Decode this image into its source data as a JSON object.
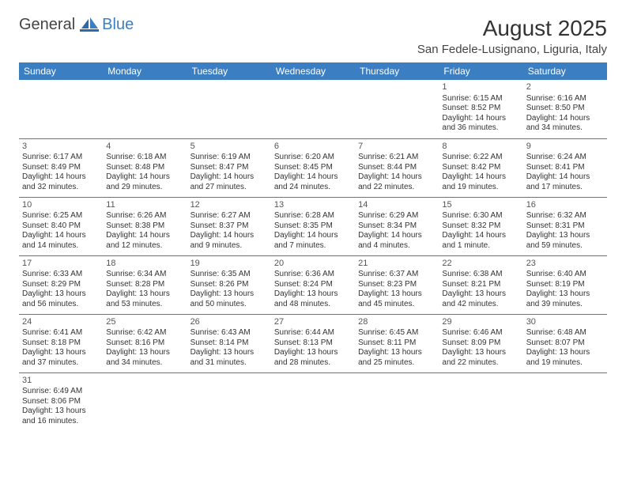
{
  "logo": {
    "general": "General",
    "blue": "Blue"
  },
  "title": "August 2025",
  "location": "San Fedele-Lusignano, Liguria, Italy",
  "colors": {
    "header_bg": "#3b7fc2",
    "header_text": "#ffffff",
    "border": "#3b7fc2",
    "text": "#333333",
    "logo_blue": "#3b7fc2",
    "logo_gray": "#444444",
    "background": "#ffffff"
  },
  "day_headers": [
    "Sunday",
    "Monday",
    "Tuesday",
    "Wednesday",
    "Thursday",
    "Friday",
    "Saturday"
  ],
  "weeks": [
    [
      null,
      null,
      null,
      null,
      null,
      {
        "n": "1",
        "sunrise": "Sunrise: 6:15 AM",
        "sunset": "Sunset: 8:52 PM",
        "daylight": "Daylight: 14 hours and 36 minutes."
      },
      {
        "n": "2",
        "sunrise": "Sunrise: 6:16 AM",
        "sunset": "Sunset: 8:50 PM",
        "daylight": "Daylight: 14 hours and 34 minutes."
      }
    ],
    [
      {
        "n": "3",
        "sunrise": "Sunrise: 6:17 AM",
        "sunset": "Sunset: 8:49 PM",
        "daylight": "Daylight: 14 hours and 32 minutes."
      },
      {
        "n": "4",
        "sunrise": "Sunrise: 6:18 AM",
        "sunset": "Sunset: 8:48 PM",
        "daylight": "Daylight: 14 hours and 29 minutes."
      },
      {
        "n": "5",
        "sunrise": "Sunrise: 6:19 AM",
        "sunset": "Sunset: 8:47 PM",
        "daylight": "Daylight: 14 hours and 27 minutes."
      },
      {
        "n": "6",
        "sunrise": "Sunrise: 6:20 AM",
        "sunset": "Sunset: 8:45 PM",
        "daylight": "Daylight: 14 hours and 24 minutes."
      },
      {
        "n": "7",
        "sunrise": "Sunrise: 6:21 AM",
        "sunset": "Sunset: 8:44 PM",
        "daylight": "Daylight: 14 hours and 22 minutes."
      },
      {
        "n": "8",
        "sunrise": "Sunrise: 6:22 AM",
        "sunset": "Sunset: 8:42 PM",
        "daylight": "Daylight: 14 hours and 19 minutes."
      },
      {
        "n": "9",
        "sunrise": "Sunrise: 6:24 AM",
        "sunset": "Sunset: 8:41 PM",
        "daylight": "Daylight: 14 hours and 17 minutes."
      }
    ],
    [
      {
        "n": "10",
        "sunrise": "Sunrise: 6:25 AM",
        "sunset": "Sunset: 8:40 PM",
        "daylight": "Daylight: 14 hours and 14 minutes."
      },
      {
        "n": "11",
        "sunrise": "Sunrise: 6:26 AM",
        "sunset": "Sunset: 8:38 PM",
        "daylight": "Daylight: 14 hours and 12 minutes."
      },
      {
        "n": "12",
        "sunrise": "Sunrise: 6:27 AM",
        "sunset": "Sunset: 8:37 PM",
        "daylight": "Daylight: 14 hours and 9 minutes."
      },
      {
        "n": "13",
        "sunrise": "Sunrise: 6:28 AM",
        "sunset": "Sunset: 8:35 PM",
        "daylight": "Daylight: 14 hours and 7 minutes."
      },
      {
        "n": "14",
        "sunrise": "Sunrise: 6:29 AM",
        "sunset": "Sunset: 8:34 PM",
        "daylight": "Daylight: 14 hours and 4 minutes."
      },
      {
        "n": "15",
        "sunrise": "Sunrise: 6:30 AM",
        "sunset": "Sunset: 8:32 PM",
        "daylight": "Daylight: 14 hours and 1 minute."
      },
      {
        "n": "16",
        "sunrise": "Sunrise: 6:32 AM",
        "sunset": "Sunset: 8:31 PM",
        "daylight": "Daylight: 13 hours and 59 minutes."
      }
    ],
    [
      {
        "n": "17",
        "sunrise": "Sunrise: 6:33 AM",
        "sunset": "Sunset: 8:29 PM",
        "daylight": "Daylight: 13 hours and 56 minutes."
      },
      {
        "n": "18",
        "sunrise": "Sunrise: 6:34 AM",
        "sunset": "Sunset: 8:28 PM",
        "daylight": "Daylight: 13 hours and 53 minutes."
      },
      {
        "n": "19",
        "sunrise": "Sunrise: 6:35 AM",
        "sunset": "Sunset: 8:26 PM",
        "daylight": "Daylight: 13 hours and 50 minutes."
      },
      {
        "n": "20",
        "sunrise": "Sunrise: 6:36 AM",
        "sunset": "Sunset: 8:24 PM",
        "daylight": "Daylight: 13 hours and 48 minutes."
      },
      {
        "n": "21",
        "sunrise": "Sunrise: 6:37 AM",
        "sunset": "Sunset: 8:23 PM",
        "daylight": "Daylight: 13 hours and 45 minutes."
      },
      {
        "n": "22",
        "sunrise": "Sunrise: 6:38 AM",
        "sunset": "Sunset: 8:21 PM",
        "daylight": "Daylight: 13 hours and 42 minutes."
      },
      {
        "n": "23",
        "sunrise": "Sunrise: 6:40 AM",
        "sunset": "Sunset: 8:19 PM",
        "daylight": "Daylight: 13 hours and 39 minutes."
      }
    ],
    [
      {
        "n": "24",
        "sunrise": "Sunrise: 6:41 AM",
        "sunset": "Sunset: 8:18 PM",
        "daylight": "Daylight: 13 hours and 37 minutes."
      },
      {
        "n": "25",
        "sunrise": "Sunrise: 6:42 AM",
        "sunset": "Sunset: 8:16 PM",
        "daylight": "Daylight: 13 hours and 34 minutes."
      },
      {
        "n": "26",
        "sunrise": "Sunrise: 6:43 AM",
        "sunset": "Sunset: 8:14 PM",
        "daylight": "Daylight: 13 hours and 31 minutes."
      },
      {
        "n": "27",
        "sunrise": "Sunrise: 6:44 AM",
        "sunset": "Sunset: 8:13 PM",
        "daylight": "Daylight: 13 hours and 28 minutes."
      },
      {
        "n": "28",
        "sunrise": "Sunrise: 6:45 AM",
        "sunset": "Sunset: 8:11 PM",
        "daylight": "Daylight: 13 hours and 25 minutes."
      },
      {
        "n": "29",
        "sunrise": "Sunrise: 6:46 AM",
        "sunset": "Sunset: 8:09 PM",
        "daylight": "Daylight: 13 hours and 22 minutes."
      },
      {
        "n": "30",
        "sunrise": "Sunrise: 6:48 AM",
        "sunset": "Sunset: 8:07 PM",
        "daylight": "Daylight: 13 hours and 19 minutes."
      }
    ],
    [
      {
        "n": "31",
        "sunrise": "Sunrise: 6:49 AM",
        "sunset": "Sunset: 8:06 PM",
        "daylight": "Daylight: 13 hours and 16 minutes."
      },
      null,
      null,
      null,
      null,
      null,
      null
    ]
  ]
}
